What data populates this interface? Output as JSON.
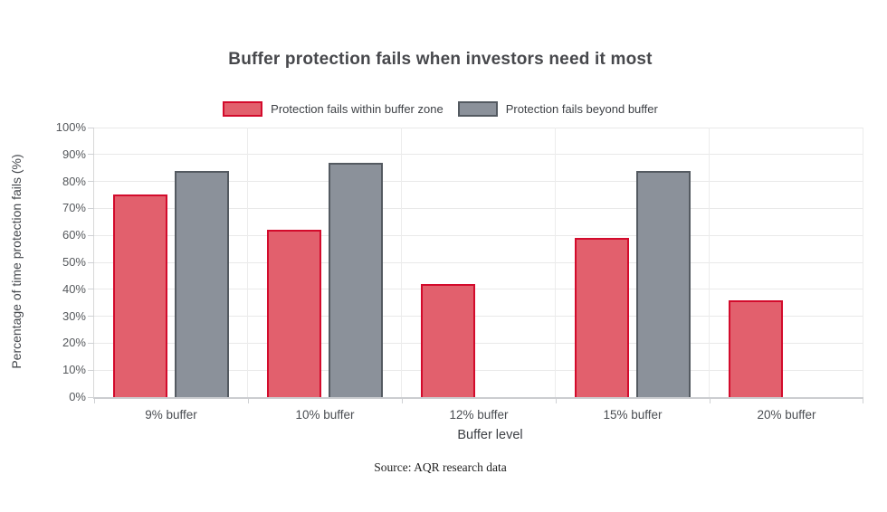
{
  "title": "Buffer protection fails when investors need it most",
  "source": "Source: AQR research data",
  "chart_data": {
    "type": "bar",
    "title": "Buffer protection fails when investors need it most",
    "categories": [
      "9% buffer",
      "10% buffer",
      "12% buffer",
      "15% buffer",
      "20% buffer"
    ],
    "series": [
      {
        "key": "within-buffer",
        "name": "Protection fails within buffer zone",
        "fill": "#e2606d",
        "border": "#d30b2c",
        "values": [
          75,
          62,
          42,
          59,
          36
        ]
      },
      {
        "key": "beyond-buffer",
        "name": "Protection fails beyond buffer",
        "fill": "#8b919a",
        "border": "#545a61",
        "values": [
          84,
          87,
          null,
          84,
          null
        ]
      }
    ],
    "xlabel": "Buffer level",
    "ylabel": "Percentage of time protection fails (%)",
    "ylim": [
      0,
      100
    ],
    "ytick_step": 10,
    "ytick_suffix": "%",
    "grid": true,
    "legend_position": "top",
    "colors": {
      "gridline": "#e9e9e9",
      "axis": "#cbcdd0",
      "title_text": "#47484c",
      "tick_text": "#55585c"
    }
  }
}
